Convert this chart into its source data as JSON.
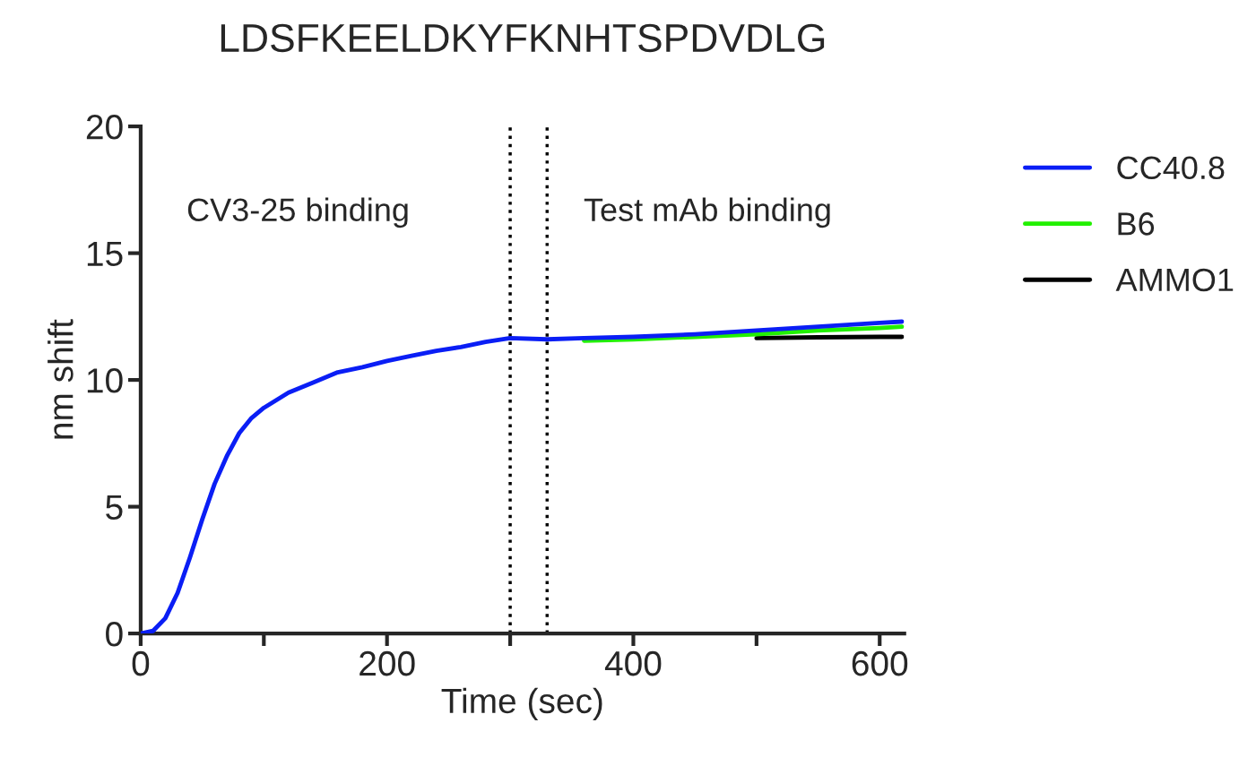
{
  "chart_data": {
    "type": "line",
    "title": "LDSFKEELDKYFKNHTSPDVDLG",
    "xlabel": "Time (sec)",
    "ylabel": "nm shift",
    "xlim": [
      0,
      620
    ],
    "ylim": [
      0,
      20
    ],
    "xticks": [
      0,
      {
        "value": 100,
        "label": null
      },
      200,
      {
        "value": 300,
        "label": null
      },
      400,
      {
        "value": 500,
        "label": null
      },
      600
    ],
    "yticks": [
      0,
      5,
      10,
      15,
      20
    ],
    "x": [
      0,
      10,
      20,
      30,
      40,
      50,
      60,
      70,
      80,
      90,
      100,
      120,
      140,
      160,
      180,
      200,
      220,
      240,
      260,
      280,
      300,
      330,
      360,
      400,
      450,
      500,
      550,
      600,
      618
    ],
    "series": [
      {
        "name": "CC40.8",
        "color": "#0a1ef5",
        "values": [
          0,
          0.1,
          0.6,
          1.6,
          3.0,
          4.5,
          5.9,
          7.0,
          7.9,
          8.5,
          8.9,
          9.5,
          9.9,
          10.3,
          10.5,
          10.75,
          10.95,
          11.15,
          11.3,
          11.5,
          11.65,
          11.6,
          11.65,
          11.7,
          11.8,
          11.95,
          12.1,
          12.25,
          12.3
        ]
      },
      {
        "name": "B6",
        "color": "#22f000",
        "x": [
          360,
          400,
          450,
          500,
          550,
          600,
          618
        ],
        "values": [
          11.55,
          11.6,
          11.7,
          11.8,
          11.95,
          12.05,
          12.1
        ]
      },
      {
        "name": "AMMO1",
        "color": "#000000",
        "x": [
          500,
          550,
          600,
          618
        ],
        "values": [
          11.65,
          11.68,
          11.7,
          11.7
        ]
      }
    ],
    "ref_lines": [
      {
        "axis": "x",
        "value": 300,
        "color": "#000000",
        "line_style": "dotted"
      },
      {
        "axis": "x",
        "value": 330,
        "color": "#000000",
        "line_style": "dotted"
      }
    ],
    "annotations": [
      "CV3-25 binding",
      "Test mAb binding"
    ],
    "legend": "right",
    "grid": false,
    "marker": "none",
    "line_style": "solid"
  }
}
